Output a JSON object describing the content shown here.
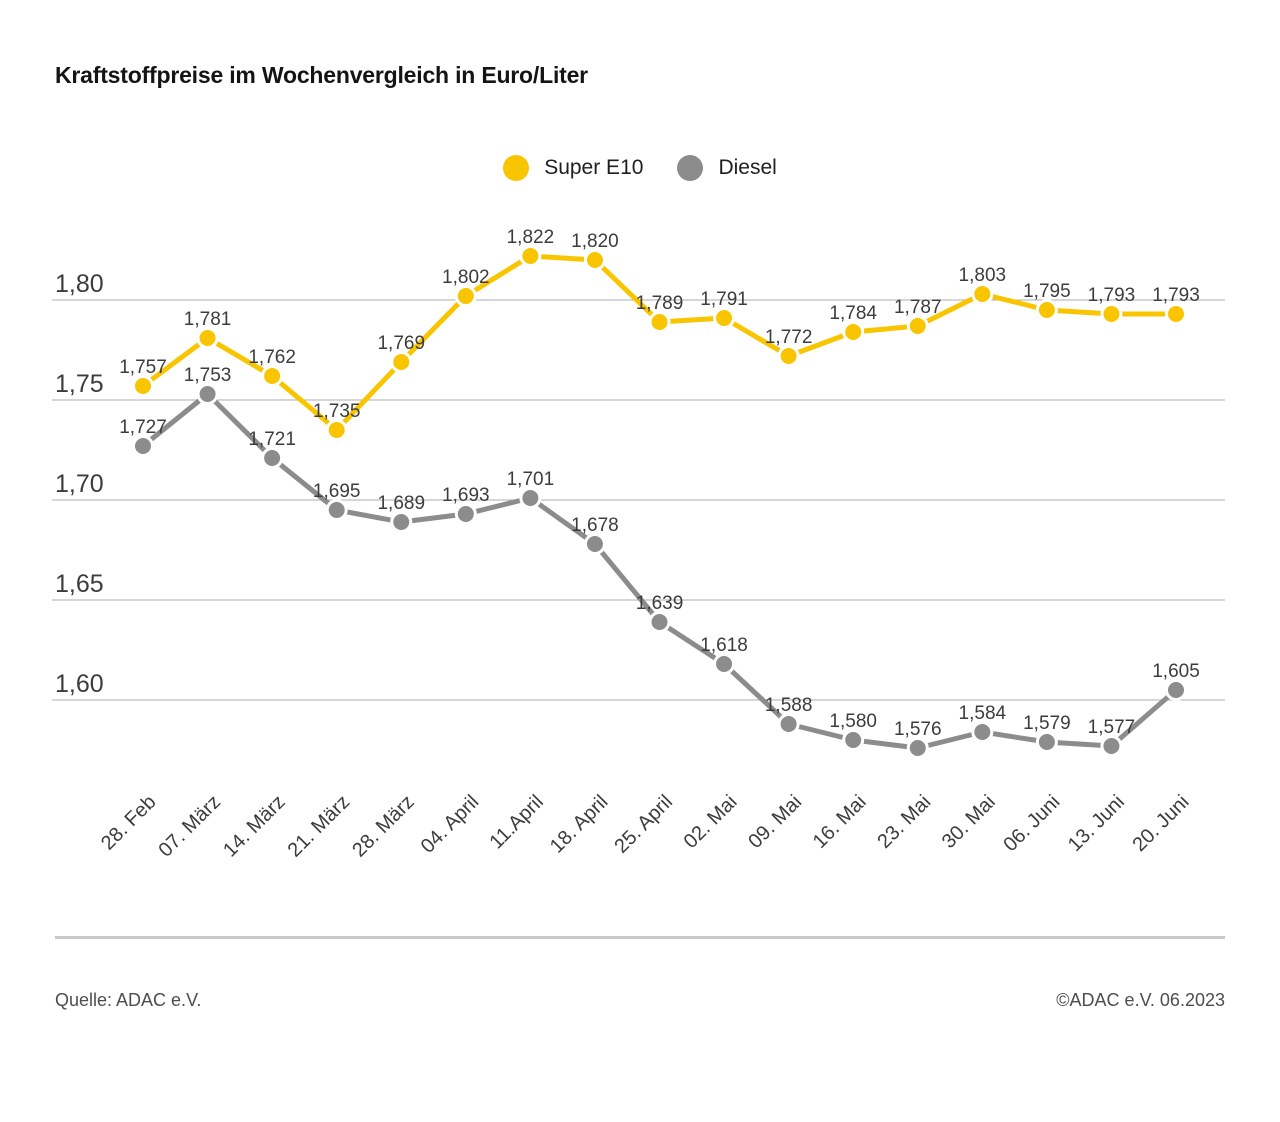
{
  "title": "Kraftstoffpreise im Wochenvergleich in Euro/Liter",
  "footer": {
    "source": "Quelle: ADAC e.V.",
    "copyright": "©ADAC e.V. 06.2023"
  },
  "colors": {
    "background": "#FFFFFF",
    "grid": "#ADADAD",
    "tick_text": "#3C3C3C",
    "point_label_text": "#3C3C3C",
    "title_text": "#141414",
    "footer_text": "#4D4D4D",
    "divider": "#C9C9C9"
  },
  "chart_data": {
    "type": "line",
    "title": "Kraftstoffpreise im Wochenvergleich in Euro/Liter",
    "unit": "Euro/Liter",
    "grid": true,
    "legend_position": "top-center",
    "ylim": [
      1.56,
      1.85
    ],
    "x": [
      "28. Feb",
      "07. März",
      "14. März",
      "21. März",
      "28. März",
      "04. April",
      "11.April",
      "18. April",
      "25. April",
      "02. Mai",
      "09. Mai",
      "16. Mai",
      "23. Mai",
      "30. Mai",
      "06. Juni",
      "13. Juni",
      "20. Juni"
    ],
    "yticks": [
      1.8,
      1.75,
      1.7,
      1.65,
      1.6
    ],
    "ytick_labels": [
      "1,80",
      "1,75",
      "1,70",
      "1,65",
      "1,60"
    ],
    "series": [
      {
        "name": "Super E10",
        "color": "#F9C500",
        "values": [
          1.757,
          1.781,
          1.762,
          1.735,
          1.769,
          1.802,
          1.822,
          1.82,
          1.789,
          1.791,
          1.772,
          1.784,
          1.787,
          1.803,
          1.795,
          1.793,
          1.793
        ],
        "labels": [
          "1,757",
          "1,781",
          "1,762",
          "1,735",
          "1,769",
          "1,802",
          "1,822",
          "1,820",
          "1,789",
          "1,791",
          "1,772",
          "1,784",
          "1,787",
          "1,803",
          "1,795",
          "1,793",
          "1,793"
        ]
      },
      {
        "name": "Diesel",
        "color": "#8C8C8C",
        "values": [
          1.727,
          1.753,
          1.721,
          1.695,
          1.689,
          1.693,
          1.701,
          1.678,
          1.639,
          1.618,
          1.588,
          1.58,
          1.576,
          1.584,
          1.579,
          1.577,
          1.605
        ],
        "labels": [
          "1,727",
          "1,753",
          "1,721",
          "1,695",
          "1,689",
          "1,693",
          "1,701",
          "1,678",
          "1,639",
          "1,618",
          "1,588",
          "1,580",
          "1,576",
          "1,584",
          "1,579",
          "1,577",
          "1,605"
        ]
      }
    ]
  }
}
